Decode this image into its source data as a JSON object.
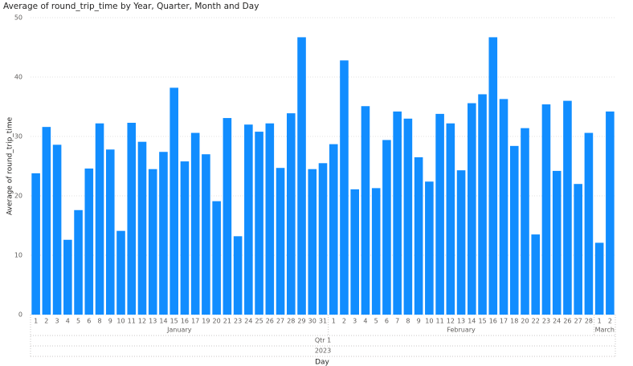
{
  "chart_data": {
    "type": "bar",
    "title": "Average of round_trip_time by Year, Quarter, Month and Day",
    "y_label": "Average of round_trip_time",
    "x_label": "Day",
    "color": "#118dff",
    "ylim": [
      0,
      50
    ],
    "yticks": [
      0,
      10,
      20,
      30,
      40,
      50
    ],
    "grid": true,
    "year": "2023",
    "quarter": "Qtr 1",
    "months": [
      {
        "name": "January",
        "categories": [
          "1",
          "2",
          "3",
          "4",
          "5",
          "6",
          "8",
          "9",
          "10",
          "11",
          "12",
          "13",
          "14",
          "15",
          "16",
          "17",
          "19",
          "20",
          "21",
          "23",
          "24",
          "25",
          "26",
          "27",
          "28",
          "29",
          "30",
          "31"
        ],
        "values": [
          23.8,
          31.6,
          28.6,
          12.6,
          17.6,
          24.6,
          32.2,
          27.8,
          14.1,
          32.3,
          29.1,
          24.5,
          27.4,
          38.2,
          25.8,
          30.6,
          27,
          19.1,
          33.1,
          13.2,
          32,
          30.8,
          32.2,
          24.7,
          33.9,
          46.7,
          24.5,
          25.5
        ]
      },
      {
        "name": "February",
        "categories": [
          "1",
          "2",
          "3",
          "4",
          "5",
          "6",
          "7",
          "8",
          "9",
          "10",
          "11",
          "12",
          "13",
          "14",
          "15",
          "16",
          "17",
          "18",
          "20",
          "22",
          "23",
          "24",
          "26",
          "27",
          "28"
        ],
        "values": [
          28.7,
          42.8,
          21.1,
          35.1,
          21.3,
          29.4,
          34.2,
          33,
          26.5,
          22.4,
          33.8,
          32.2,
          24.3,
          35.6,
          37.1,
          46.7,
          36.3,
          28.4,
          31.4,
          13.5,
          35.4,
          24.2,
          36,
          22,
          30.6
        ]
      },
      {
        "name": "March",
        "categories": [
          "1",
          "2"
        ],
        "values": [
          12.1,
          34.2
        ]
      }
    ]
  }
}
